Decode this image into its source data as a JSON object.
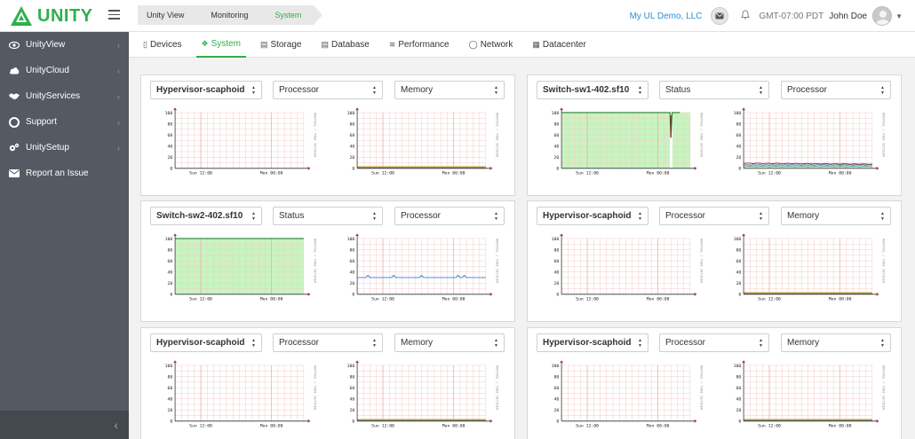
{
  "brand": {
    "name": "UNITY",
    "color": "#2eb04d"
  },
  "breadcrumb": [
    "Unity View",
    "Monitoring",
    "System"
  ],
  "header": {
    "org": "My UL Demo, LLC",
    "timezone": "GMT-07:00 PDT",
    "user": "John Doe",
    "icons": [
      "mail-icon",
      "bell-icon",
      "user-avatar",
      "caret-down-icon"
    ]
  },
  "sidebar": {
    "items": [
      {
        "label": "UnityView",
        "icon": "eye-icon"
      },
      {
        "label": "UnityCloud",
        "icon": "cloud-icon"
      },
      {
        "label": "UnityServices",
        "icon": "handshake-icon"
      },
      {
        "label": "Support",
        "icon": "lifebuoy-icon"
      },
      {
        "label": "UnitySetup",
        "icon": "gears-icon"
      },
      {
        "label": "Report an Issue",
        "icon": "envelope-icon"
      }
    ],
    "collapse_icon": "chevron-left-icon"
  },
  "tabs": [
    {
      "label": "Devices",
      "icon": "mobile-icon"
    },
    {
      "label": "System",
      "icon": "cubes-icon",
      "active": true
    },
    {
      "label": "Storage",
      "icon": "hdd-icon"
    },
    {
      "label": "Database",
      "icon": "database-icon"
    },
    {
      "label": "Performance",
      "icon": "line-chart-icon"
    },
    {
      "label": "Network",
      "icon": "globe-icon"
    },
    {
      "label": "Datacenter",
      "icon": "building-icon"
    }
  ],
  "chart_common": {
    "y_ticks": [
      "100",
      "80",
      "60",
      "40",
      "20",
      "0"
    ],
    "x_ticks": [
      "Sun 12:00",
      "Mon 00:00"
    ],
    "side_label": "RRDTOOL / TOBI OETIKER"
  },
  "panels": [
    {
      "device": "Hypervisor-scaphoid",
      "metric1": "Processor",
      "metric2": "Memory",
      "chart1": "empty",
      "chart2": "flat_low"
    },
    {
      "device": "Switch-sw1-402.sf10",
      "metric1": "Status",
      "metric2": "Processor",
      "chart1": "status_full_dip",
      "chart2": "proc_multi"
    },
    {
      "device": "Switch-sw2-402.sf10",
      "metric1": "Status",
      "metric2": "Processor",
      "chart1": "status_full",
      "chart2": "proc_blue"
    },
    {
      "device": "Hypervisor-scaphoid",
      "metric1": "Processor",
      "metric2": "Memory",
      "chart1": "empty",
      "chart2": "flat_low"
    },
    {
      "device": "Hypervisor-scaphoid",
      "metric1": "Processor",
      "metric2": "Memory",
      "chart1": "empty",
      "chart2": "flat_low"
    },
    {
      "device": "Hypervisor-scaphoid",
      "metric1": "Processor",
      "metric2": "Memory",
      "chart1": "empty",
      "chart2": "flat_low"
    }
  ]
}
